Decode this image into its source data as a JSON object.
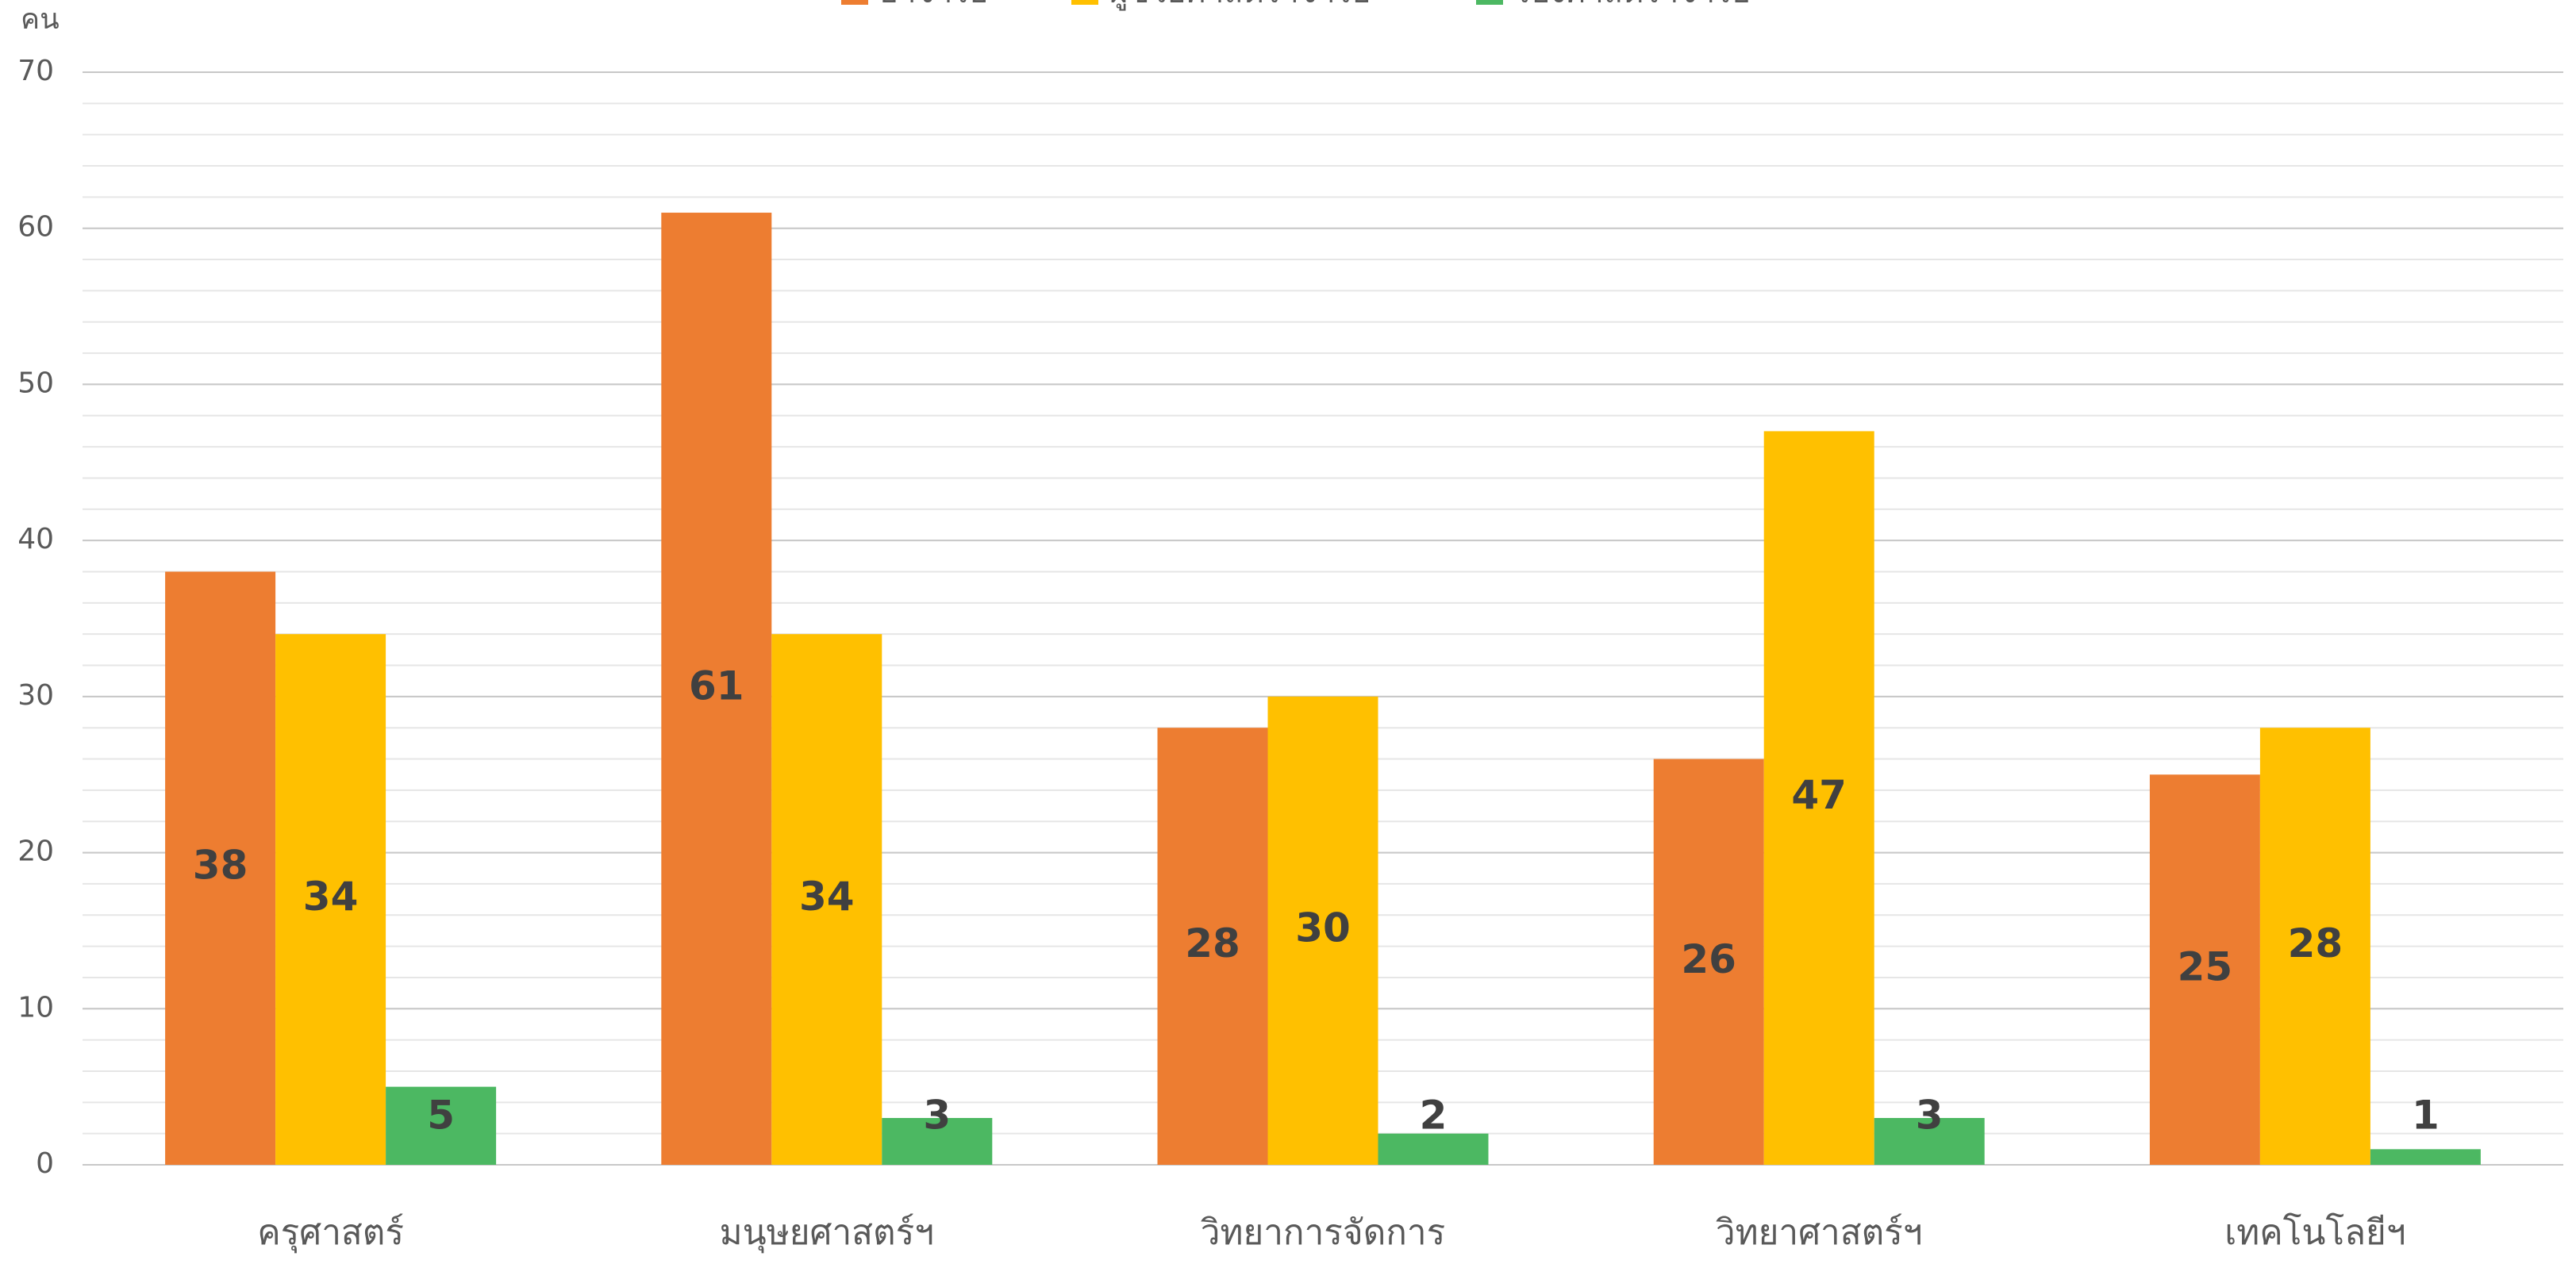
{
  "chart_data": {
    "type": "bar",
    "y_label": "คน",
    "categories": [
      "ครุศาสตร์",
      "มนุษยศาสตร์ฯ",
      "วิทยาการจัดการ",
      "วิทยาศาสตร์ฯ",
      "เทคโนโลยีฯ"
    ],
    "series": [
      {
        "name": "อาจารย์",
        "color": "#ed7d31",
        "values": [
          38,
          61,
          28,
          26,
          25
        ]
      },
      {
        "name": "ผู้ช่วยศาสตราจารย์",
        "color": "#ffc000",
        "values": [
          34,
          34,
          30,
          47,
          28
        ]
      },
      {
        "name": "รองศาสตราจารย์",
        "color": "#4cb862",
        "values": [
          5,
          3,
          2,
          3,
          1
        ]
      }
    ],
    "ylim": [
      0,
      70
    ],
    "yticks": [
      0,
      10,
      20,
      30,
      40,
      50,
      60,
      70
    ],
    "grid": true,
    "legend": "top"
  }
}
